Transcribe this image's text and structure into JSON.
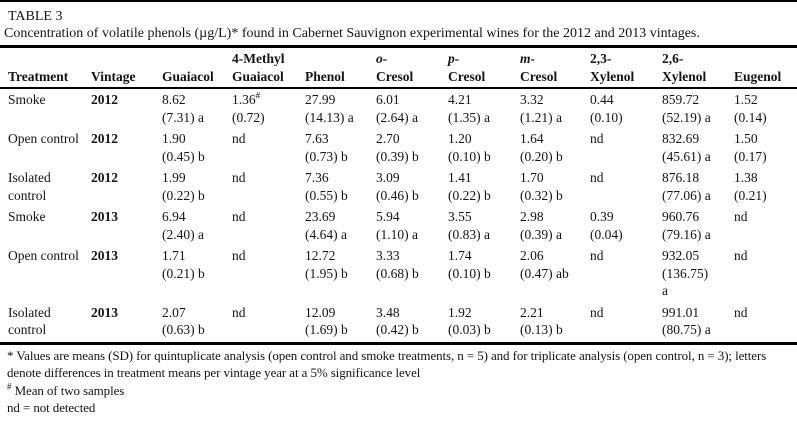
{
  "table": {
    "label": "TABLE 3",
    "caption": "Concentration of volatile phenols (µg/L)* found in Cabernet Sauvignon experimental wines for the 2012 and 2013 vintages.",
    "columns": [
      {
        "top": "",
        "bottom": "Treatment",
        "italic_top": false
      },
      {
        "top": "",
        "bottom": "Vintage",
        "italic_top": false
      },
      {
        "top": "",
        "bottom": "Guaiacol",
        "italic_top": false
      },
      {
        "top": "4-Methyl",
        "bottom": "Guaiacol",
        "italic_top": false
      },
      {
        "top": "",
        "bottom": "Phenol",
        "italic_top": false
      },
      {
        "top": "o-",
        "bottom": "Cresol",
        "italic_top": true
      },
      {
        "top": "p-",
        "bottom": "Cresol",
        "italic_top": true
      },
      {
        "top": "m-",
        "bottom": "Cresol",
        "italic_top": true
      },
      {
        "top": "2,3-",
        "bottom": "Xylenol",
        "italic_top": false
      },
      {
        "top": "2,6-",
        "bottom": "Xylenol",
        "italic_top": false
      },
      {
        "top": "",
        "bottom": "Eugenol",
        "italic_top": false
      }
    ],
    "rows": [
      {
        "treatment": "Smoke",
        "vintage": "2012",
        "values": [
          {
            "v": "8.62",
            "sup": "",
            "sd": "(7.31) a"
          },
          {
            "v": "1.36",
            "sup": "#",
            "sd": "(0.72)"
          },
          {
            "v": "27.99",
            "sup": "",
            "sd": "(14.13) a"
          },
          {
            "v": "6.01",
            "sup": "",
            "sd": "(2.64) a"
          },
          {
            "v": "4.21",
            "sup": "",
            "sd": "(1.35) a"
          },
          {
            "v": "3.32",
            "sup": "",
            "sd": "(1.21) a"
          },
          {
            "v": "0.44",
            "sup": "",
            "sd": "(0.10)"
          },
          {
            "v": "859.72",
            "sup": "",
            "sd": "(52.19) a"
          },
          {
            "v": "1.52",
            "sup": "",
            "sd": "(0.14)"
          }
        ]
      },
      {
        "treatment": "Open control",
        "vintage": "2012",
        "values": [
          {
            "v": "1.90",
            "sup": "",
            "sd": "(0.45) b"
          },
          {
            "v": "nd",
            "sup": "",
            "sd": ""
          },
          {
            "v": "7.63",
            "sup": "",
            "sd": "(0.73) b"
          },
          {
            "v": "2.70",
            "sup": "",
            "sd": "(0.39) b"
          },
          {
            "v": "1.20",
            "sup": "",
            "sd": "(0.10) b"
          },
          {
            "v": "1.64",
            "sup": "",
            "sd": "(0.20) b"
          },
          {
            "v": "nd",
            "sup": "",
            "sd": ""
          },
          {
            "v": "832.69",
            "sup": "",
            "sd": "(45.61) a"
          },
          {
            "v": "1.50",
            "sup": "",
            "sd": "(0.17)"
          }
        ]
      },
      {
        "treatment": "Isolated control",
        "vintage": "2012",
        "values": [
          {
            "v": "1.99",
            "sup": "",
            "sd": "(0.22) b"
          },
          {
            "v": "nd",
            "sup": "",
            "sd": ""
          },
          {
            "v": "7.36",
            "sup": "",
            "sd": "(0.55) b"
          },
          {
            "v": "3.09",
            "sup": "",
            "sd": "(0.46) b"
          },
          {
            "v": "1.41",
            "sup": "",
            "sd": "(0.22) b"
          },
          {
            "v": "1.70",
            "sup": "",
            "sd": "(0.32) b"
          },
          {
            "v": "nd",
            "sup": "",
            "sd": ""
          },
          {
            "v": "876.18",
            "sup": "",
            "sd": "(77.06) a"
          },
          {
            "v": "1.38",
            "sup": "",
            "sd": "(0.21)"
          }
        ]
      },
      {
        "treatment": "Smoke",
        "vintage": "2013",
        "values": [
          {
            "v": "6.94",
            "sup": "",
            "sd": "(2.40) a"
          },
          {
            "v": "nd",
            "sup": "",
            "sd": ""
          },
          {
            "v": "23.69",
            "sup": "",
            "sd": "(4.64) a"
          },
          {
            "v": "5.94",
            "sup": "",
            "sd": "(1.10) a"
          },
          {
            "v": "3.55",
            "sup": "",
            "sd": "(0.83) a"
          },
          {
            "v": "2.98",
            "sup": "",
            "sd": "(0.39) a"
          },
          {
            "v": "0.39",
            "sup": "",
            "sd": "(0.04)"
          },
          {
            "v": "960.76",
            "sup": "",
            "sd": "(79.16) a"
          },
          {
            "v": "nd",
            "sup": "",
            "sd": ""
          }
        ]
      },
      {
        "treatment": "Open control",
        "vintage": "2013",
        "values": [
          {
            "v": "1.71",
            "sup": "",
            "sd": "(0.21) b"
          },
          {
            "v": "nd",
            "sup": "",
            "sd": ""
          },
          {
            "v": "12.72",
            "sup": "",
            "sd": "(1.95) b"
          },
          {
            "v": "3.33",
            "sup": "",
            "sd": "(0.68) b"
          },
          {
            "v": "1.74",
            "sup": "",
            "sd": "(0.10) b"
          },
          {
            "v": "2.06",
            "sup": "",
            "sd": "(0.47) ab"
          },
          {
            "v": "nd",
            "sup": "",
            "sd": ""
          },
          {
            "v": "932.05",
            "sup": "",
            "sd": "(136.75) a"
          },
          {
            "v": "nd",
            "sup": "",
            "sd": ""
          }
        ]
      },
      {
        "treatment": "Isolated control",
        "vintage": "2013",
        "values": [
          {
            "v": "2.07",
            "sup": "",
            "sd": "(0.63) b"
          },
          {
            "v": "nd",
            "sup": "",
            "sd": ""
          },
          {
            "v": "12.09",
            "sup": "",
            "sd": "(1.69) b"
          },
          {
            "v": "3.48",
            "sup": "",
            "sd": "(0.42) b"
          },
          {
            "v": "1.92",
            "sup": "",
            "sd": "(0.03) b"
          },
          {
            "v": "2.21",
            "sup": "",
            "sd": "(0.13) b"
          },
          {
            "v": "nd",
            "sup": "",
            "sd": ""
          },
          {
            "v": "991.01",
            "sup": "",
            "sd": "(80.75) a"
          },
          {
            "v": "nd",
            "sup": "",
            "sd": ""
          }
        ]
      }
    ],
    "footnotes": [
      {
        "marker": "*",
        "text": "Values are means (SD) for quintuplicate analysis (open control and smoke treatments, n = 5) and for triplicate analysis (open control, n = 3); letters denote differences in treatment means per vintage year at a 5% significance level"
      },
      {
        "marker": "#",
        "text": "Mean of two samples"
      },
      {
        "marker": "",
        "text": "nd = not detected"
      }
    ]
  }
}
